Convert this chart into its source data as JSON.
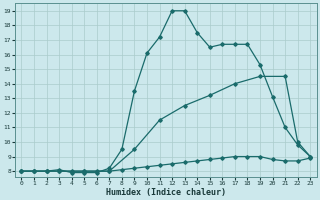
{
  "xlabel": "Humidex (Indice chaleur)",
  "bg_color": "#cce8ec",
  "grid_color": "#aacccc",
  "line_color": "#1a6b6b",
  "xlim": [
    -0.5,
    23.5
  ],
  "ylim": [
    7.6,
    19.5
  ],
  "xticks": [
    0,
    1,
    2,
    3,
    4,
    5,
    6,
    7,
    8,
    9,
    10,
    11,
    12,
    13,
    14,
    15,
    16,
    17,
    18,
    19,
    20,
    21,
    22,
    23
  ],
  "yticks": [
    8,
    9,
    10,
    11,
    12,
    13,
    14,
    15,
    16,
    17,
    18,
    19
  ],
  "line1_x": [
    0,
    1,
    2,
    3,
    4,
    5,
    6,
    7,
    8,
    9,
    10,
    11,
    12,
    13,
    14,
    15,
    16,
    17,
    18,
    19,
    20,
    21,
    22,
    23
  ],
  "line1_y": [
    8.0,
    8.0,
    8.0,
    8.1,
    7.9,
    7.9,
    7.9,
    8.2,
    9.5,
    13.5,
    16.1,
    17.2,
    19.0,
    19.0,
    17.5,
    16.5,
    16.7,
    16.7,
    16.7,
    15.3,
    13.1,
    11.0,
    9.8,
    9.0
  ],
  "line2_x": [
    0,
    1,
    2,
    3,
    5,
    7,
    9,
    11,
    13,
    15,
    17,
    19,
    21,
    22,
    23
  ],
  "line2_y": [
    8.0,
    8.0,
    8.0,
    8.0,
    8.0,
    8.0,
    9.5,
    11.5,
    12.5,
    13.2,
    14.0,
    14.5,
    14.5,
    10.0,
    9.0
  ],
  "line3_x": [
    0,
    1,
    2,
    3,
    4,
    5,
    6,
    7,
    8,
    9,
    10,
    11,
    12,
    13,
    14,
    15,
    16,
    17,
    18,
    19,
    20,
    21,
    22,
    23
  ],
  "line3_y": [
    8.0,
    8.0,
    8.0,
    8.0,
    8.0,
    8.0,
    8.0,
    8.0,
    8.1,
    8.2,
    8.3,
    8.4,
    8.5,
    8.6,
    8.7,
    8.8,
    8.9,
    9.0,
    9.0,
    9.0,
    8.8,
    8.7,
    8.7,
    8.9
  ]
}
